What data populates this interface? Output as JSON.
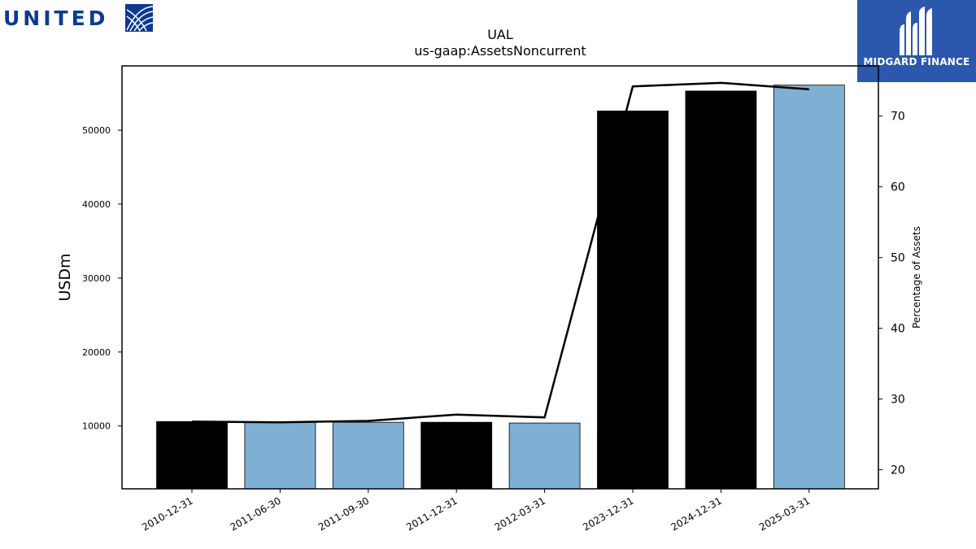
{
  "logos": {
    "left_brand": "UNITED",
    "right_brand": "MIDGARD FINANCE"
  },
  "colors": {
    "bar_dark": "#000000",
    "bar_light": "#7fb0d3",
    "line": "#000000",
    "united_blue": "#0b3a93",
    "midgard_blue": "#2b58ad"
  },
  "chart_data": {
    "type": "bar",
    "title": "UAL",
    "subtitle": "us-gaap:AssetsNoncurrent",
    "ylabel": "USDm",
    "y2label": "Percentage of Assets",
    "categories": [
      "2010-12-31",
      "2011-06-30",
      "2011-09-30",
      "2011-12-31",
      "2012-03-31",
      "2023-12-31",
      "2024-12-31",
      "2025-03-31"
    ],
    "series": [
      {
        "type": "bar",
        "axis": "left",
        "values": [
          10600,
          10550,
          10500,
          10500,
          10400,
          52600,
          55300,
          56100
        ],
        "colors": [
          "dark",
          "light",
          "light",
          "dark",
          "light",
          "dark",
          "dark",
          "light"
        ]
      },
      {
        "type": "line",
        "axis": "right",
        "values": [
          26.8,
          26.7,
          26.9,
          27.8,
          27.4,
          74.2,
          74.7,
          73.8
        ]
      }
    ],
    "ylim": [
      1500,
      58700
    ],
    "y2lim": [
      17.3,
      77.1
    ],
    "yticks": [
      10000,
      20000,
      30000,
      40000,
      50000
    ],
    "y2ticks": [
      20,
      30,
      40,
      50,
      60,
      70
    ],
    "grid": false,
    "legend": "none"
  }
}
